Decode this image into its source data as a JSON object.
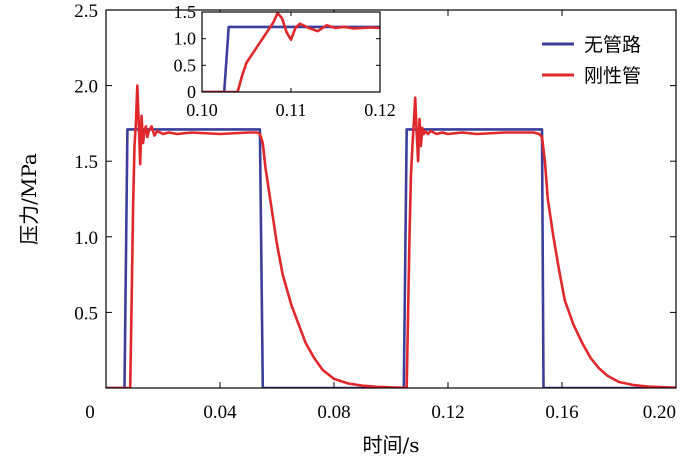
{
  "chart_data": [
    {
      "type": "line",
      "xlabel": "时间/s",
      "ylabel": "压力/MPa",
      "xlim": [
        0,
        0.2
      ],
      "ylim": [
        0,
        2.5
      ],
      "x_ticks": [
        "0",
        "0.04",
        "0.08",
        "0.12",
        "0.16",
        "0.20"
      ],
      "x_tick_values": [
        0,
        0.04,
        0.08,
        0.12,
        0.16,
        0.2
      ],
      "y_ticks": [
        "0.5",
        "1.0",
        "1.5",
        "2.0",
        "2.5"
      ],
      "y_tick_values": [
        0.5,
        1.0,
        1.5,
        2.0,
        2.5
      ],
      "legend": {
        "position": "top-right",
        "entries": [
          "无管路",
          "刚性管"
        ]
      },
      "series": [
        {
          "name": "无管路",
          "color": "#3b3f9a",
          "x": [
            0,
            0.0065,
            0.0075,
            0.008,
            0.054,
            0.055,
            0.104,
            0.1045,
            0.1055,
            0.106,
            0.153,
            0.1535,
            0.2
          ],
          "y": [
            0,
            0,
            1.71,
            1.71,
            1.71,
            0,
            0,
            0,
            1.71,
            1.71,
            1.71,
            0,
            0
          ]
        },
        {
          "name": "刚性管",
          "color": "#e0282c",
          "x": [
            0,
            0.0085,
            0.009,
            0.0095,
            0.01,
            0.0105,
            0.011,
            0.0115,
            0.012,
            0.0125,
            0.013,
            0.0135,
            0.014,
            0.0145,
            0.015,
            0.016,
            0.017,
            0.018,
            0.019,
            0.02,
            0.022,
            0.025,
            0.03,
            0.04,
            0.05,
            0.053,
            0.054,
            0.055,
            0.056,
            0.058,
            0.06,
            0.062,
            0.065,
            0.068,
            0.07,
            0.073,
            0.076,
            0.08,
            0.085,
            0.09,
            0.095,
            0.1,
            0.104,
            0.1055,
            0.106,
            0.1065,
            0.107,
            0.1075,
            0.108,
            0.1085,
            0.109,
            0.1095,
            0.11,
            0.1105,
            0.111,
            0.1115,
            0.112,
            0.113,
            0.114,
            0.115,
            0.116,
            0.118,
            0.12,
            0.125,
            0.13,
            0.14,
            0.15,
            0.152,
            0.153,
            0.154,
            0.155,
            0.157,
            0.159,
            0.161,
            0.164,
            0.167,
            0.17,
            0.173,
            0.176,
            0.18,
            0.185,
            0.19,
            0.195,
            0.2
          ],
          "y": [
            0,
            0,
            0.6,
            1.2,
            1.6,
            1.75,
            2.0,
            1.75,
            1.48,
            1.8,
            1.62,
            1.7,
            1.73,
            1.66,
            1.7,
            1.73,
            1.67,
            1.7,
            1.69,
            1.68,
            1.69,
            1.68,
            1.69,
            1.68,
            1.69,
            1.69,
            1.68,
            1.62,
            1.45,
            1.2,
            0.95,
            0.75,
            0.55,
            0.4,
            0.3,
            0.2,
            0.12,
            0.06,
            0.03,
            0.015,
            0.008,
            0.004,
            0.002,
            0.002,
            0.5,
            1.0,
            1.4,
            1.6,
            1.75,
            1.92,
            1.7,
            1.5,
            1.78,
            1.6,
            1.72,
            1.68,
            1.7,
            1.68,
            1.7,
            1.69,
            1.68,
            1.69,
            1.68,
            1.69,
            1.68,
            1.69,
            1.69,
            1.68,
            1.66,
            1.5,
            1.25,
            1.0,
            0.78,
            0.58,
            0.42,
            0.3,
            0.2,
            0.13,
            0.08,
            0.04,
            0.02,
            0.01,
            0.005,
            0.002
          ]
        }
      ]
    },
    {
      "type": "line",
      "role": "inset",
      "xlim": [
        0.1,
        0.12
      ],
      "ylim": [
        0,
        1.5
      ],
      "x_ticks": [
        "0.10",
        "0.11",
        "0.12"
      ],
      "x_tick_values": [
        0.1,
        0.11,
        0.12
      ],
      "y_ticks": [
        "0",
        "0.5",
        "1.0",
        "1.5"
      ],
      "y_tick_values": [
        0,
        0.5,
        1.0,
        1.5
      ],
      "series": [
        {
          "name": "无管路",
          "color": "#3b3f9a",
          "x": [
            0.1,
            0.1025,
            0.103,
            0.12
          ],
          "y": [
            0,
            0,
            1.22,
            1.22
          ]
        },
        {
          "name": "刚性管",
          "color": "#e0282c",
          "x": [
            0.1,
            0.104,
            0.1045,
            0.105,
            0.106,
            0.107,
            0.108,
            0.1085,
            0.109,
            0.1095,
            0.11,
            0.1105,
            0.111,
            0.112,
            0.113,
            0.114,
            0.115,
            0.116,
            0.117,
            0.118,
            0.119,
            0.12
          ],
          "y": [
            0,
            0,
            0.3,
            0.55,
            0.8,
            1.05,
            1.3,
            1.48,
            1.38,
            1.12,
            0.98,
            1.2,
            1.28,
            1.2,
            1.14,
            1.25,
            1.2,
            1.22,
            1.19,
            1.2,
            1.21,
            1.2
          ]
        }
      ]
    }
  ]
}
